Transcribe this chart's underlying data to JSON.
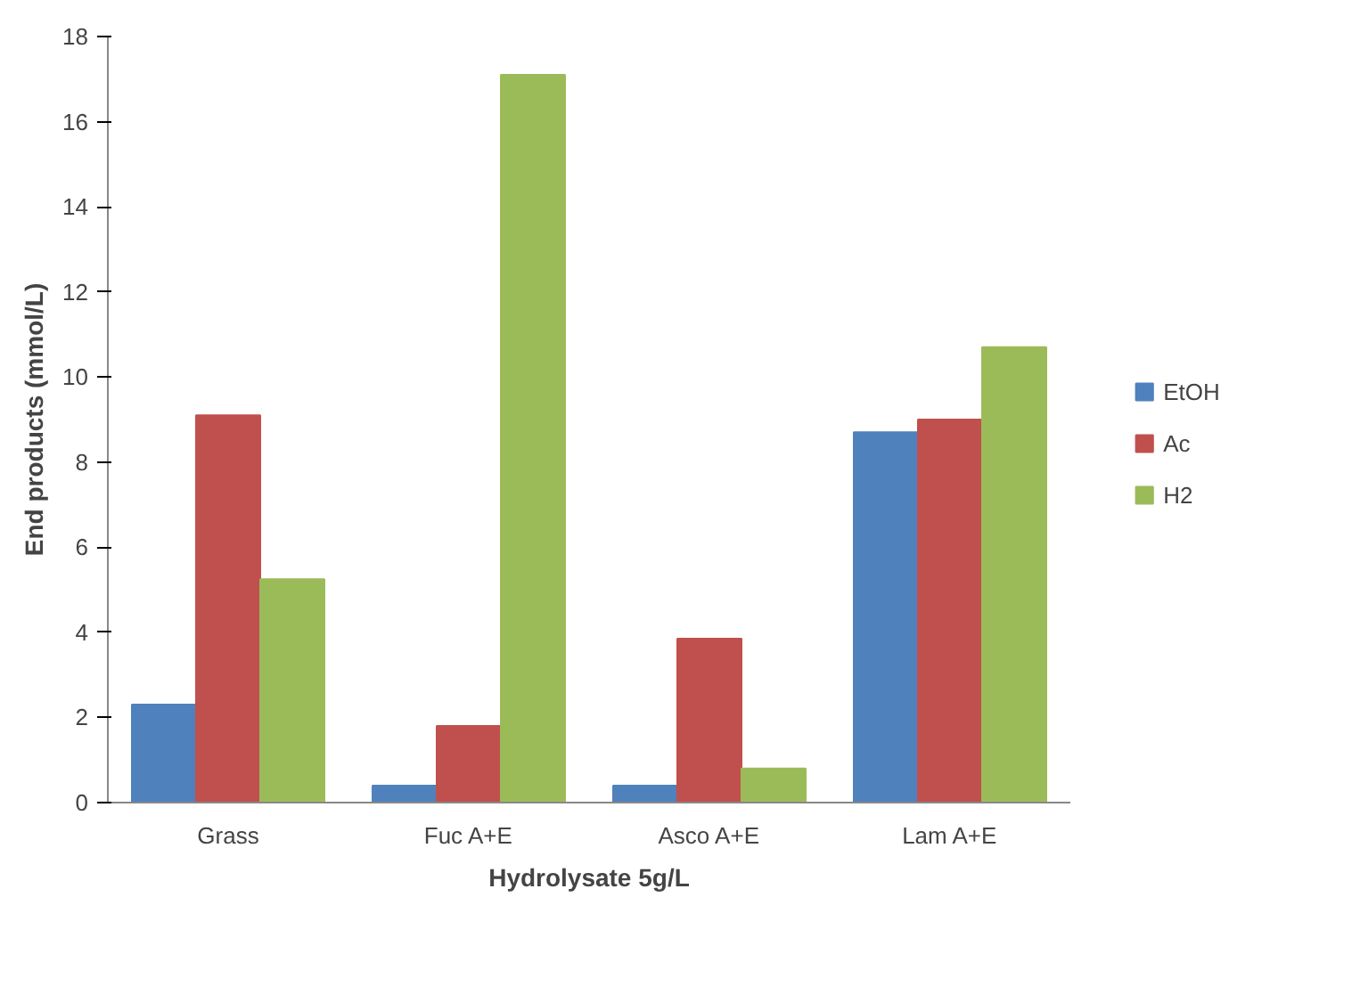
{
  "chart_data": {
    "type": "bar",
    "xlabel": "Hydrolysate 5g/L",
    "ylabel": "End products (mmol/L)",
    "categories": [
      "Grass",
      "Fuc A+E",
      "Asco A+E",
      "Lam A+E"
    ],
    "series": [
      {
        "name": "EtOH",
        "color": "#4f81bd",
        "values": [
          2.3,
          0.4,
          0.4,
          8.7
        ]
      },
      {
        "name": "Ac",
        "color": "#c0504d",
        "values": [
          9.1,
          1.8,
          3.85,
          9.0
        ]
      },
      {
        "name": "H2",
        "color": "#9bbb59",
        "values": [
          5.25,
          17.1,
          0.8,
          10.7
        ]
      }
    ],
    "ylim": [
      0,
      18
    ],
    "yticks": [
      0,
      2,
      4,
      6,
      8,
      10,
      12,
      14,
      16,
      18
    ],
    "grid": false,
    "legend": "right"
  }
}
